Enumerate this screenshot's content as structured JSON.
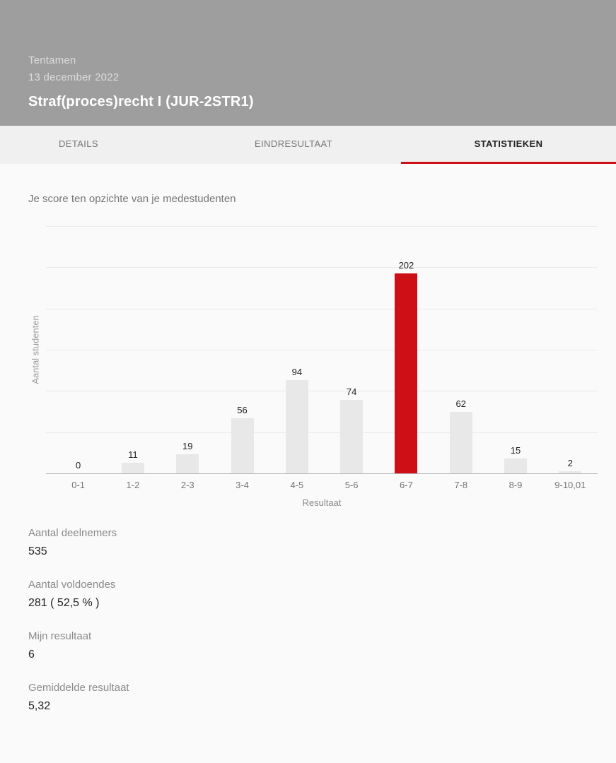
{
  "header": {
    "type_label": "Tentamen",
    "date": "13 december 2022",
    "title": "Straf(proces)recht I (JUR-2STR1)"
  },
  "tabs": [
    {
      "label": "DETAILS",
      "active": false
    },
    {
      "label": "EINDRESULTAAT",
      "active": false
    },
    {
      "label": "STATISTIEKEN",
      "active": true
    }
  ],
  "chart_data": {
    "type": "bar",
    "title": "Je score ten opzichte van je medestudenten",
    "categories": [
      "0-1",
      "1-2",
      "2-3",
      "3-4",
      "4-5",
      "5-6",
      "6-7",
      "7-8",
      "8-9",
      "9-10,01"
    ],
    "values": [
      0,
      11,
      19,
      56,
      94,
      74,
      202,
      62,
      15,
      2
    ],
    "highlight_index": 6,
    "xlabel": "Resultaat",
    "ylabel": "Aantal studenten",
    "ylim": [
      0,
      250
    ],
    "gridline_count": 7,
    "grid": true,
    "legend": "none",
    "bar_color": "#e8e8e8",
    "highlight_color": "#cc1016"
  },
  "stats": [
    {
      "label": "Aantal deelnemers",
      "value": "535"
    },
    {
      "label": "Aantal voldoendes",
      "value": "281 ( 52,5 % )"
    },
    {
      "label": "Mijn resultaat",
      "value": "6"
    },
    {
      "label": "Gemiddelde resultaat",
      "value": "5,32"
    }
  ],
  "colors": {
    "accent_red": "#cc1016",
    "header_gray": "#9e9e9e",
    "content_bg": "#fafafa",
    "tabbar_bg": "#f0f0f0"
  }
}
